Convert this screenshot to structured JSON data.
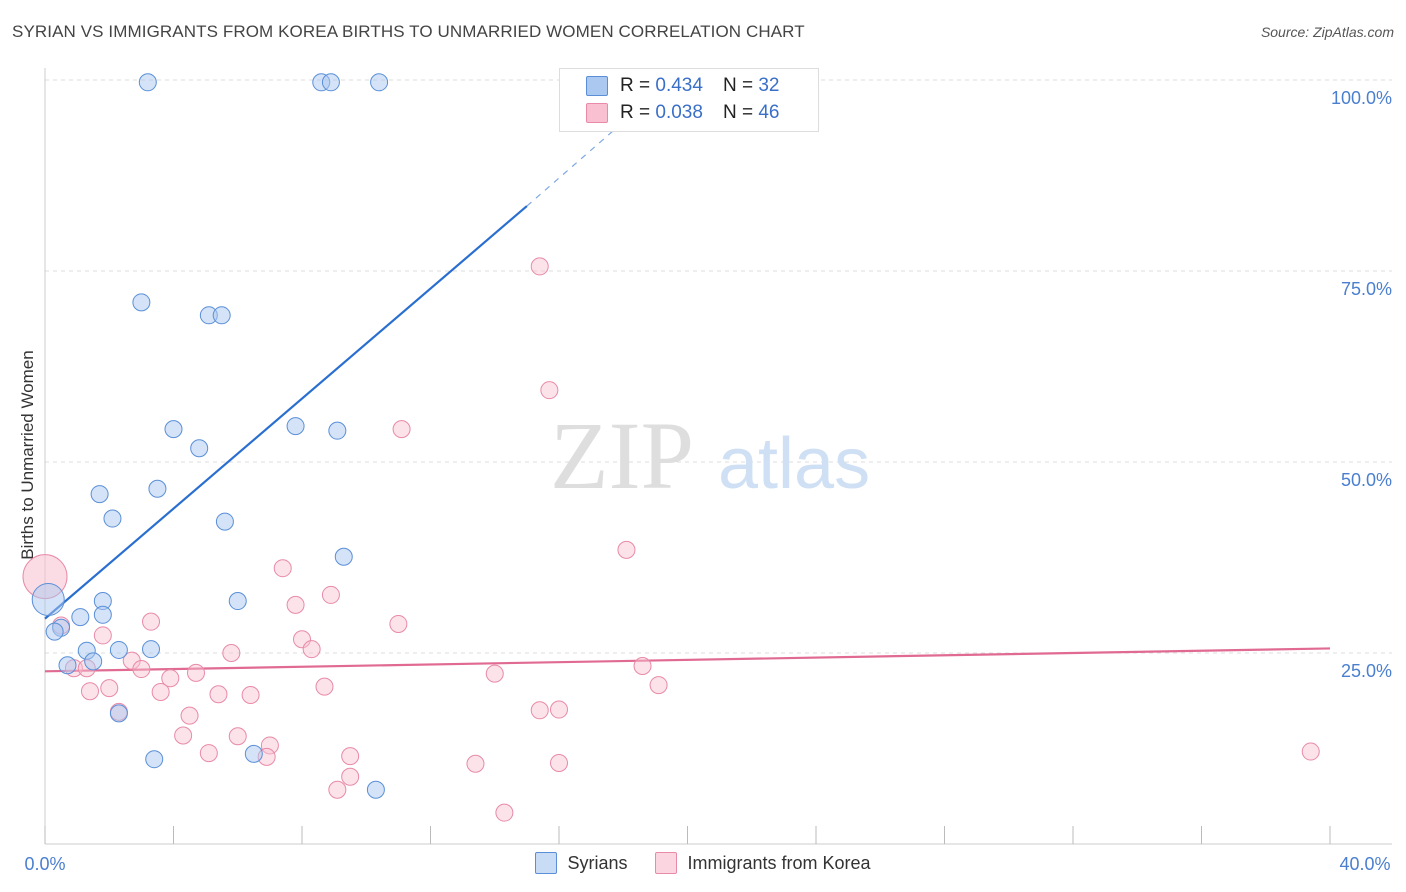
{
  "title": "SYRIAN VS IMMIGRANTS FROM KOREA BIRTHS TO UNMARRIED WOMEN CORRELATION CHART",
  "source": "Source: ZipAtlas.com",
  "watermark": {
    "zip": "ZIP",
    "atlas": "atlas"
  },
  "legend": {
    "r_label": "R =",
    "n_label": "N =",
    "syrians": {
      "r": "0.434",
      "n": "32"
    },
    "korea": {
      "r": "0.038",
      "n": "46"
    }
  },
  "bottom_legend": {
    "syrians": "Syrians",
    "korea": "Immigrants from Korea"
  },
  "colors": {
    "syrians_fill": "#aac8f0",
    "syrians_stroke": "#5a8fd8",
    "syrians_line": "#2a6fd0",
    "korea_fill": "#f8c0d0",
    "korea_stroke": "#e88aa8",
    "korea_line": "#e06a92",
    "tick_text": "#4a7fd0"
  },
  "chart_data": {
    "type": "scatter",
    "title": "SYRIAN VS IMMIGRANTS FROM KOREA BIRTHS TO UNMARRIED WOMEN CORRELATION CHART",
    "xlabel": "",
    "ylabel": "Births to Unmarried Women",
    "xlim": [
      0,
      40
    ],
    "ylim": [
      0,
      100
    ],
    "x_tick_labels": [
      "0.0%",
      "40.0%"
    ],
    "y_ticks": [
      25,
      50,
      75,
      100
    ],
    "y_tick_labels": [
      "25.0%",
      "50.0%",
      "75.0%",
      "100.0%"
    ],
    "grid": true,
    "series": [
      {
        "name": "Syrians",
        "r": 0.434,
        "n": 32,
        "points": [
          [
            3.2,
            99.7
          ],
          [
            8.6,
            99.7
          ],
          [
            8.9,
            99.7
          ],
          [
            10.4,
            99.7
          ],
          [
            3.0,
            70.9
          ],
          [
            5.1,
            69.2
          ],
          [
            5.5,
            69.2
          ],
          [
            4.0,
            54.3
          ],
          [
            7.8,
            54.7
          ],
          [
            9.1,
            54.1
          ],
          [
            4.8,
            51.8
          ],
          [
            3.5,
            46.5
          ],
          [
            1.7,
            45.8
          ],
          [
            2.1,
            42.6
          ],
          [
            5.6,
            42.2
          ],
          [
            9.3,
            37.6
          ],
          [
            0.1,
            32.0
          ],
          [
            1.8,
            31.8
          ],
          [
            6.0,
            31.8
          ],
          [
            1.8,
            30.0
          ],
          [
            1.1,
            29.7
          ],
          [
            0.5,
            28.3
          ],
          [
            0.3,
            27.8
          ],
          [
            3.3,
            25.5
          ],
          [
            2.3,
            25.4
          ],
          [
            1.3,
            25.3
          ],
          [
            1.5,
            23.9
          ],
          [
            0.7,
            23.4
          ],
          [
            2.3,
            17.1
          ],
          [
            3.4,
            11.1
          ],
          [
            6.5,
            11.8
          ],
          [
            10.3,
            7.1
          ]
        ],
        "trend": {
          "x": [
            0,
            15
          ],
          "y": [
            29.5,
            83.5
          ],
          "dashed_to": {
            "x": 18,
            "y": 94.5
          }
        }
      },
      {
        "name": "Immigrants from Korea",
        "r": 0.038,
        "n": 46,
        "points": [
          [
            0.0,
            35.0
          ],
          [
            15.4,
            75.6
          ],
          [
            15.7,
            59.4
          ],
          [
            11.1,
            54.3
          ],
          [
            18.1,
            38.5
          ],
          [
            7.4,
            36.1
          ],
          [
            8.9,
            32.6
          ],
          [
            7.8,
            31.3
          ],
          [
            11.0,
            28.8
          ],
          [
            3.3,
            29.1
          ],
          [
            0.5,
            28.6
          ],
          [
            1.8,
            27.3
          ],
          [
            8.0,
            26.8
          ],
          [
            8.3,
            25.5
          ],
          [
            5.8,
            25.0
          ],
          [
            2.7,
            24.0
          ],
          [
            0.9,
            23.0
          ],
          [
            3.0,
            22.9
          ],
          [
            18.6,
            23.3
          ],
          [
            4.7,
            22.4
          ],
          [
            14.0,
            22.3
          ],
          [
            3.9,
            21.7
          ],
          [
            19.1,
            20.8
          ],
          [
            8.7,
            20.6
          ],
          [
            2.0,
            20.4
          ],
          [
            1.4,
            20.0
          ],
          [
            3.6,
            19.9
          ],
          [
            5.4,
            19.6
          ],
          [
            6.4,
            19.5
          ],
          [
            15.4,
            17.5
          ],
          [
            16.0,
            17.6
          ],
          [
            2.3,
            17.3
          ],
          [
            4.5,
            16.8
          ],
          [
            4.3,
            14.2
          ],
          [
            6.0,
            14.1
          ],
          [
            7.0,
            12.9
          ],
          [
            5.1,
            11.9
          ],
          [
            6.9,
            11.4
          ],
          [
            9.5,
            11.5
          ],
          [
            13.4,
            10.5
          ],
          [
            16.0,
            10.6
          ],
          [
            9.5,
            8.8
          ],
          [
            9.1,
            7.1
          ],
          [
            39.4,
            12.1
          ],
          [
            14.3,
            4.1
          ],
          [
            1.3,
            23.0
          ]
        ],
        "trend": {
          "x": [
            0,
            40
          ],
          "y": [
            22.6,
            25.6
          ]
        }
      }
    ]
  }
}
